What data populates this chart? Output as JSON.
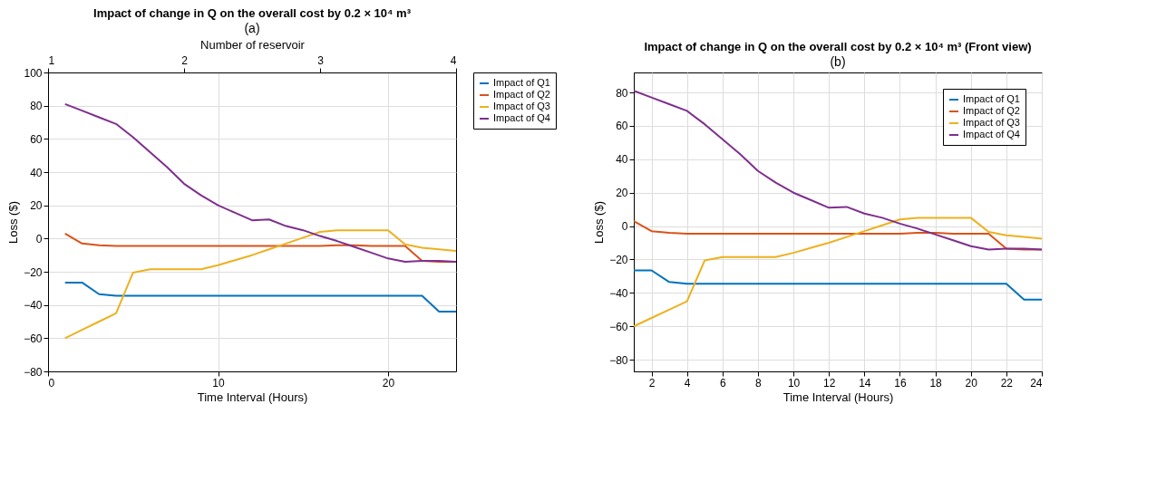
{
  "chart_data": [
    {
      "type": "line",
      "title": "Impact of change in Q on the overall cost by 0.2 × 10⁴ m³",
      "xlabel": "Time Interval (Hours)",
      "ylabel": "Loss ($)",
      "x2label": "Number of reservoir",
      "x": [
        1,
        2,
        3,
        4,
        5,
        6,
        7,
        8,
        9,
        10,
        11,
        12,
        13,
        14,
        15,
        16,
        17,
        18,
        19,
        20,
        21,
        22,
        23,
        24
      ],
      "series": [
        {
          "name": "Impact of Q1",
          "color": "#0072bd",
          "values": [
            -26.5,
            -26.5,
            -33.5,
            -34.5,
            -34.5,
            -34.5,
            -34.5,
            -34.5,
            -34.5,
            -34.5,
            -34.5,
            -34.5,
            -34.5,
            -34.5,
            -34.5,
            -34.5,
            -34.5,
            -34.5,
            -34.5,
            -34.5,
            -34.5,
            -34.5,
            -44,
            -44
          ]
        },
        {
          "name": "Impact of Q2",
          "color": "#d95319",
          "values": [
            3,
            -3,
            -4,
            -4.5,
            -4.5,
            -4.5,
            -4.5,
            -4.5,
            -4.5,
            -4.5,
            -4.5,
            -4.5,
            -4.5,
            -4.5,
            -4.5,
            -4.5,
            -4,
            -4,
            -4.5,
            -4.5,
            -4.5,
            -13.5,
            -14,
            -14
          ]
        },
        {
          "name": "Impact of Q3",
          "color": "#edb120",
          "values": [
            -60,
            -55,
            -50,
            -45,
            -20.5,
            -18.5,
            -18.5,
            -18.5,
            -18.5,
            -16,
            -13,
            -10,
            -6.5,
            -3,
            0.5,
            4,
            5,
            5,
            5,
            5,
            -3.5,
            -5.5,
            -6.5,
            -7.5
          ]
        },
        {
          "name": "Impact of Q4",
          "color": "#7e2f8e",
          "values": [
            81,
            77,
            73,
            69,
            61,
            52,
            43,
            33,
            26,
            20,
            15.5,
            11,
            11.5,
            7.5,
            5,
            1.5,
            -1.5,
            -5,
            -8.5,
            -12,
            -14,
            -13.5,
            -13.5,
            -14
          ]
        }
      ],
      "xlim": [
        0,
        24
      ],
      "xticks": [
        0,
        10,
        20
      ],
      "x2lim": [
        1,
        4
      ],
      "x2ticks": [
        1,
        2,
        3,
        4
      ],
      "ylim": [
        -80,
        100
      ],
      "yticks": [
        -80,
        -60,
        -40,
        -20,
        0,
        20,
        40,
        60,
        80,
        100
      ],
      "grid": true,
      "legend": "right",
      "line_style": "solid",
      "marker": "none",
      "annotations": [
        "(a)"
      ]
    },
    {
      "type": "line",
      "title": "Impact of change in Q on the overall cost by 0.2 × 10⁴ m³ (Front view)",
      "xlabel": "Time Interval (Hours)",
      "ylabel": "Loss ($)",
      "x": [
        1,
        2,
        3,
        4,
        5,
        6,
        7,
        8,
        9,
        10,
        11,
        12,
        13,
        14,
        15,
        16,
        17,
        18,
        19,
        20,
        21,
        22,
        23,
        24
      ],
      "series": [
        {
          "name": "Impact of Q1",
          "color": "#0072bd",
          "values": [
            -26.5,
            -26.5,
            -33.5,
            -34.5,
            -34.5,
            -34.5,
            -34.5,
            -34.5,
            -34.5,
            -34.5,
            -34.5,
            -34.5,
            -34.5,
            -34.5,
            -34.5,
            -34.5,
            -34.5,
            -34.5,
            -34.5,
            -34.5,
            -34.5,
            -34.5,
            -44,
            -44
          ]
        },
        {
          "name": "Impact of Q2",
          "color": "#d95319",
          "values": [
            3,
            -3,
            -4,
            -4.5,
            -4.5,
            -4.5,
            -4.5,
            -4.5,
            -4.5,
            -4.5,
            -4.5,
            -4.5,
            -4.5,
            -4.5,
            -4.5,
            -4.5,
            -4,
            -4,
            -4.5,
            -4.5,
            -4.5,
            -13.5,
            -14,
            -14
          ]
        },
        {
          "name": "Impact of Q3",
          "color": "#edb120",
          "values": [
            -60,
            -55,
            -50,
            -45,
            -20.5,
            -18.5,
            -18.5,
            -18.5,
            -18.5,
            -16,
            -13,
            -10,
            -6.5,
            -3,
            0.5,
            4,
            5,
            5,
            5,
            5,
            -3.5,
            -5.5,
            -6.5,
            -7.5
          ]
        },
        {
          "name": "Impact of Q4",
          "color": "#7e2f8e",
          "values": [
            81,
            77,
            73,
            69,
            61,
            52,
            43,
            33,
            26,
            20,
            15.5,
            11,
            11.5,
            7.5,
            5,
            1.5,
            -1.5,
            -5,
            -8.5,
            -12,
            -14,
            -13.5,
            -13.5,
            -14
          ]
        }
      ],
      "xlim": [
        1,
        24
      ],
      "xticks": [
        2,
        4,
        6,
        8,
        10,
        12,
        14,
        16,
        18,
        20,
        22,
        24
      ],
      "ylim": [
        -87,
        92
      ],
      "yticks": [
        -80,
        -60,
        -40,
        -20,
        0,
        20,
        40,
        60,
        80
      ],
      "grid": true,
      "legend": "top right",
      "line_style": "solid",
      "marker": "none",
      "annotations": [
        "(b)"
      ]
    }
  ]
}
